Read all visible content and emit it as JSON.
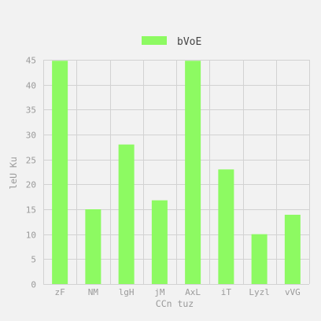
{
  "chart_data": {
    "type": "bar",
    "categories": [
      "zF",
      "NM",
      "lgH",
      "jM",
      "AxL",
      "iT",
      "Lyzl",
      "vVG"
    ],
    "series": [
      {
        "name": "bVoE",
        "values": [
          44.8,
          15,
          28,
          16.8,
          44.8,
          23,
          10,
          13.9
        ],
        "color": "#8dfa62"
      }
    ],
    "xlabel": "CCn tuz",
    "ylabel": "leU Ku",
    "ylim": [
      0,
      45
    ],
    "yticks": [
      0,
      5,
      10,
      15,
      20,
      25,
      30,
      35,
      40,
      45
    ],
    "grid": true,
    "legend_position": "top-center"
  },
  "colors": {
    "background": "#f2f2f2",
    "grid": "#d2d2d2",
    "bar": "#8dfa62",
    "text": "#9a9a9a"
  }
}
